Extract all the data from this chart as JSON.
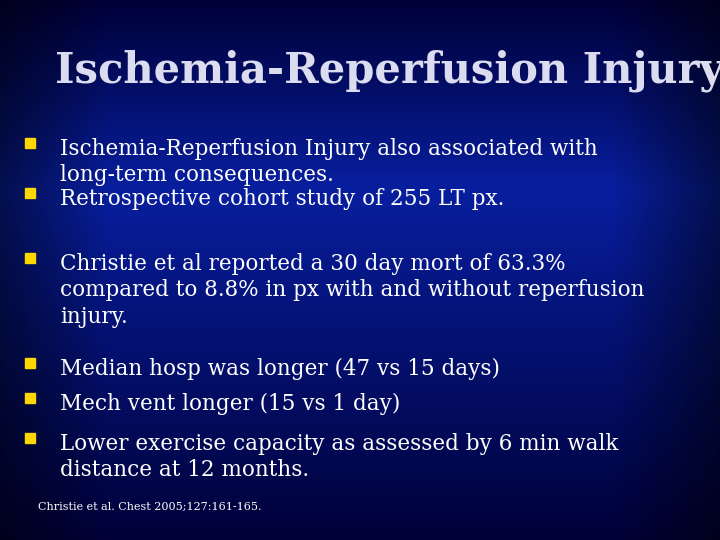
{
  "title": "Ischemia-Reperfusion Injury",
  "title_color": "#DCDCF0",
  "title_fontsize": 30,
  "bullet_color": "#FFD700",
  "bullet_text_color": "#FFFFFF",
  "bullet_fontsize": 15.5,
  "footnote": "Christie et al. Chest 2005;127:161-165.",
  "footnote_fontsize": 8,
  "bullets": [
    "Ischemia-Reperfusion Injury also associated with\nlong-term consequences.",
    "Retrospective cohort study of 255 LT px.",
    "Christie et al reported a 30 day mort of 63.3%\ncompared to 8.8% in px with and without reperfusion\ninjury.",
    "Median hosp was longer (47 vs 15 days)",
    "Mech vent longer (15 vs 1 day)",
    "Lower exercise capacity as assessed by 6 min walk\ndistance at 12 months."
  ],
  "bg_dark": [
    0.0,
    0.0,
    0.22
  ],
  "bg_mid": [
    0.03,
    0.12,
    0.62
  ]
}
